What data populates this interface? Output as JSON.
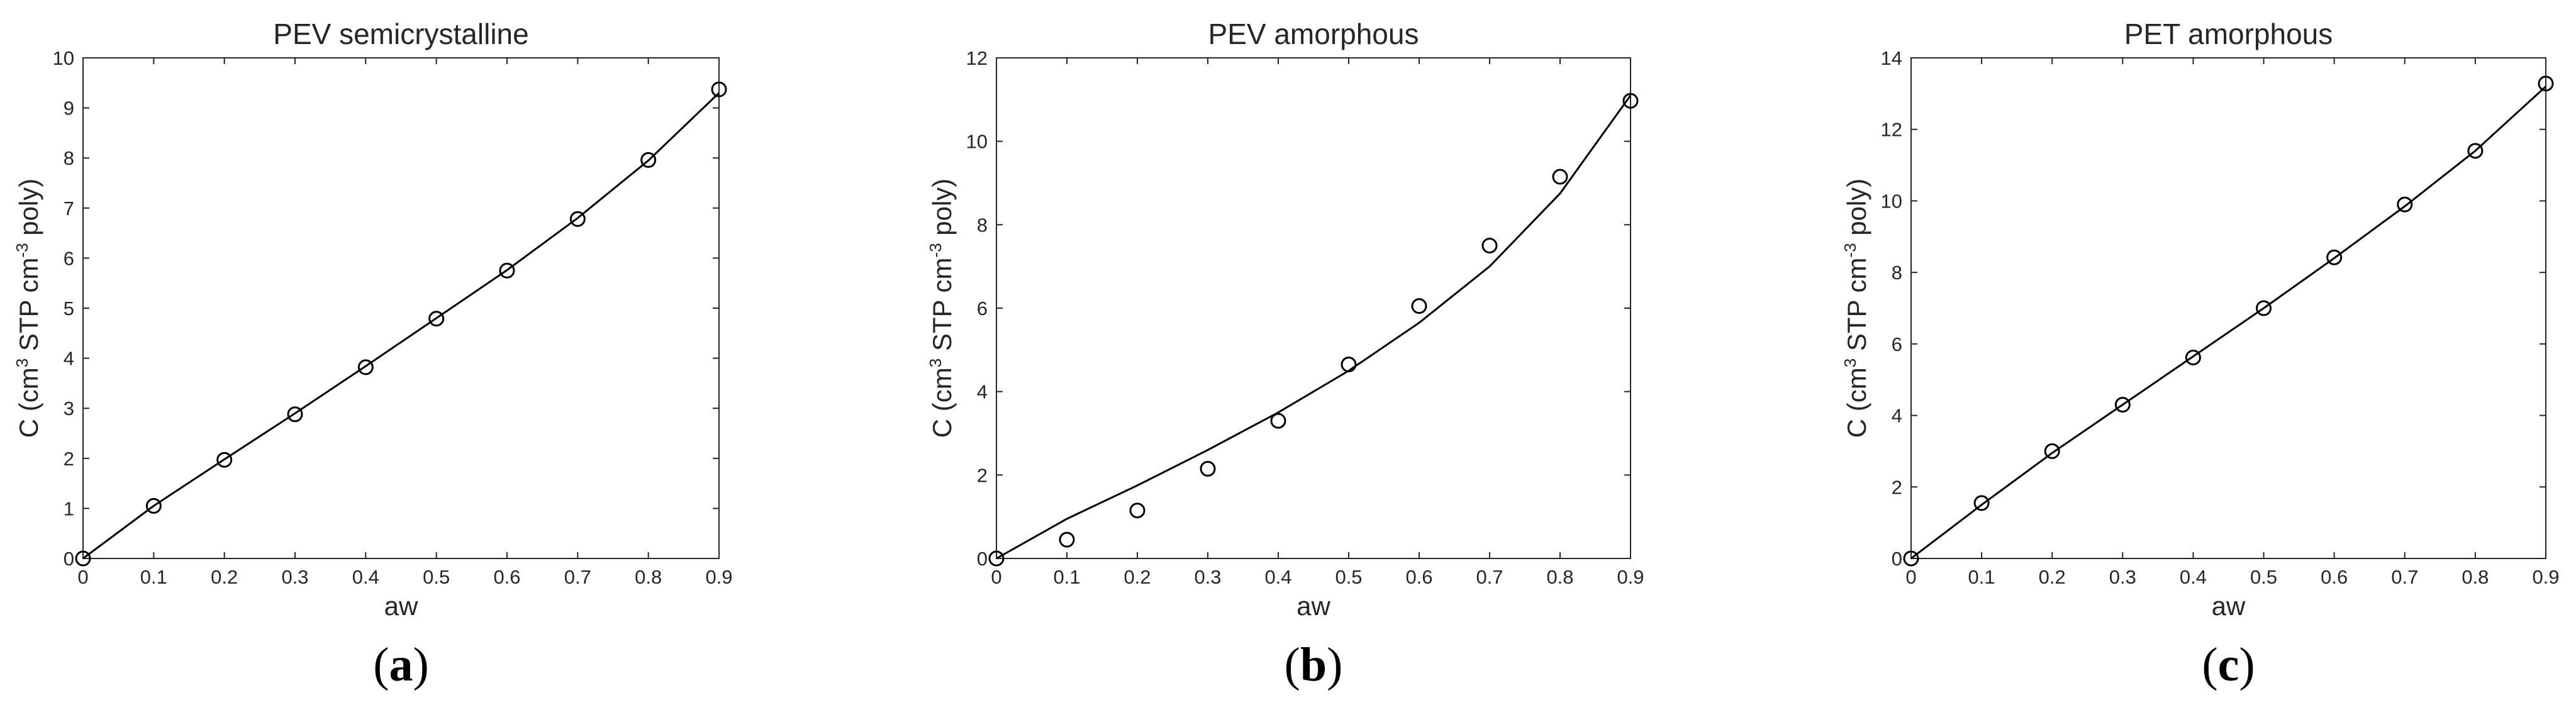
{
  "chart_data": [
    {
      "type": "scatter",
      "title": "PEV semicrystalline",
      "xlabel": "aw",
      "ylabel": "C (cm3 STP cm-3 poly)",
      "panel_label": "a",
      "xlim": [
        0,
        0.9
      ],
      "ylim": [
        0,
        10
      ],
      "xticks": [
        0,
        0.1,
        0.2,
        0.3,
        0.4,
        0.5,
        0.6,
        0.7,
        0.8,
        0.9
      ],
      "yticks": [
        0,
        1,
        2,
        3,
        4,
        5,
        6,
        7,
        8,
        9,
        10
      ],
      "grid": false,
      "series": [
        {
          "kind": "markers",
          "x": [
            0,
            0.1,
            0.2,
            0.3,
            0.4,
            0.5,
            0.6,
            0.7,
            0.8,
            0.9
          ],
          "y": [
            0,
            1.05,
            1.97,
            2.88,
            3.82,
            4.79,
            5.75,
            6.78,
            7.96,
            9.37
          ]
        },
        {
          "kind": "line",
          "x": [
            0,
            0.1,
            0.2,
            0.3,
            0.4,
            0.5,
            0.6,
            0.7,
            0.8,
            0.9
          ],
          "y": [
            0,
            1.05,
            1.98,
            2.9,
            3.84,
            4.8,
            5.76,
            6.8,
            7.95,
            9.3
          ]
        }
      ]
    },
    {
      "type": "scatter",
      "title": "PEV amorphous",
      "xlabel": "aw",
      "ylabel": "C (cm3 STP cm-3 poly)",
      "panel_label": "b",
      "xlim": [
        0,
        0.9
      ],
      "ylim": [
        0,
        12
      ],
      "xticks": [
        0,
        0.1,
        0.2,
        0.3,
        0.4,
        0.5,
        0.6,
        0.7,
        0.8,
        0.9
      ],
      "yticks": [
        0,
        2,
        4,
        6,
        8,
        10,
        12
      ],
      "grid": false,
      "series": [
        {
          "kind": "markers",
          "x": [
            0,
            0.1,
            0.2,
            0.3,
            0.4,
            0.5,
            0.6,
            0.7,
            0.8,
            0.9
          ],
          "y": [
            0,
            0.45,
            1.15,
            2.15,
            3.3,
            4.65,
            6.05,
            7.5,
            9.15,
            10.97
          ]
        },
        {
          "kind": "line",
          "x": [
            0,
            0.1,
            0.2,
            0.3,
            0.4,
            0.5,
            0.6,
            0.7,
            0.8,
            0.9
          ],
          "y": [
            0,
            0.95,
            1.75,
            2.6,
            3.5,
            4.5,
            5.65,
            7.0,
            8.75,
            11.1
          ]
        }
      ]
    },
    {
      "type": "scatter",
      "title": "PET amorphous",
      "xlabel": "aw",
      "ylabel": "C (cm3 STP cm-3 poly)",
      "panel_label": "c",
      "xlim": [
        0,
        0.9
      ],
      "ylim": [
        0,
        14
      ],
      "xticks": [
        0,
        0.1,
        0.2,
        0.3,
        0.4,
        0.5,
        0.6,
        0.7,
        0.8,
        0.9
      ],
      "yticks": [
        0,
        2,
        4,
        6,
        8,
        10,
        12,
        14
      ],
      "grid": false,
      "series": [
        {
          "kind": "markers",
          "x": [
            0,
            0.1,
            0.2,
            0.3,
            0.4,
            0.5,
            0.6,
            0.7,
            0.8,
            0.9
          ],
          "y": [
            0,
            1.55,
            3.0,
            4.3,
            5.62,
            7.0,
            8.42,
            9.9,
            11.4,
            13.28
          ]
        },
        {
          "kind": "line",
          "x": [
            0,
            0.1,
            0.2,
            0.3,
            0.4,
            0.5,
            0.6,
            0.7,
            0.8,
            0.9
          ],
          "y": [
            0,
            1.5,
            2.95,
            4.3,
            5.65,
            7.0,
            8.4,
            9.85,
            11.4,
            13.2
          ]
        }
      ]
    }
  ],
  "style": {
    "axis_color": "#262626",
    "line_color": "#000000",
    "marker_color": "#000000",
    "background": "#ffffff"
  }
}
